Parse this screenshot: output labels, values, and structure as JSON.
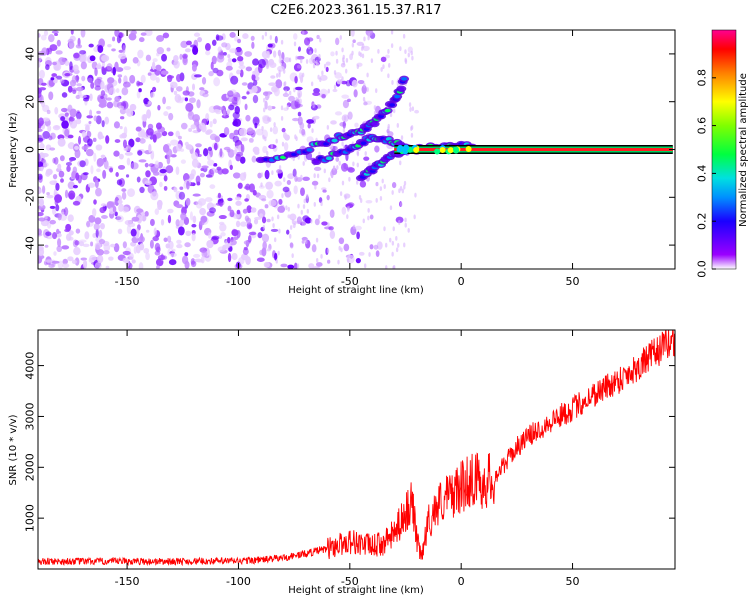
{
  "title": "C2E6.2023.361.15.37.R17",
  "chart_data": [
    {
      "type": "heatmap",
      "xlabel": "Height of straight line (km)",
      "ylabel": "Frequency (Hz)",
      "xlim": [
        -190,
        96
      ],
      "ylim": [
        -50,
        50
      ],
      "xticks": [
        -150,
        -100,
        -50,
        0,
        50
      ],
      "yticks": [
        -40,
        -20,
        0,
        20,
        40
      ],
      "colorbar": {
        "label": "Normalized spectral amplitude",
        "range": [
          0.0,
          1.0
        ],
        "ticks": [
          0.0,
          0.2,
          0.4,
          0.6,
          0.8
        ]
      },
      "features": {
        "noise_region_x": [
          -190,
          -20
        ],
        "tone_line": {
          "frequency_hz": 0,
          "x_start": -30,
          "x_end": 95,
          "amplitude": 1.0
        },
        "chirp_tracks": [
          {
            "x": [
              -90,
              -70,
              -55,
              -45,
              -38,
              -30,
              -25
            ],
            "y": [
              -5,
              0,
              5,
              8,
              12,
              20,
              30
            ]
          },
          {
            "x": [
              -65,
              -50,
              -40,
              -30,
              -20,
              -10,
              0,
              10
            ],
            "y": [
              -5,
              0,
              5,
              3,
              0,
              1,
              2,
              0
            ]
          },
          {
            "x": [
              -45,
              -38,
              -30,
              -25
            ],
            "y": [
              -12,
              -7,
              -2,
              0
            ]
          }
        ]
      }
    },
    {
      "type": "line",
      "xlabel": "Height of straight line (km)",
      "ylabel": "SNR (10 * v/v)",
      "xlim": [
        -190,
        96
      ],
      "ylim": [
        0,
        4700
      ],
      "xticks": [
        -150,
        -100,
        -50,
        0,
        50
      ],
      "yticks": [
        1000,
        2000,
        3000,
        4000
      ],
      "color": "#ff0000",
      "series": [
        {
          "x": [
            -190,
            -150,
            -120,
            -100,
            -90,
            -80,
            -70,
            -60,
            -55,
            -50,
            -45,
            -40,
            -35,
            -30,
            -25,
            -22,
            -20,
            -18,
            -15,
            -10,
            -5,
            0,
            5,
            10,
            15,
            20,
            25,
            30,
            40,
            50,
            60,
            70,
            80,
            90,
            95
          ],
          "y": [
            150,
            150,
            150,
            160,
            180,
            220,
            300,
            400,
            480,
            550,
            500,
            450,
            500,
            700,
            1100,
            1300,
            600,
            200,
            900,
            1300,
            1450,
            1600,
            1800,
            1700,
            1800,
            2100,
            2400,
            2600,
            2900,
            3150,
            3450,
            3700,
            4000,
            4350,
            4500
          ]
        }
      ]
    }
  ]
}
